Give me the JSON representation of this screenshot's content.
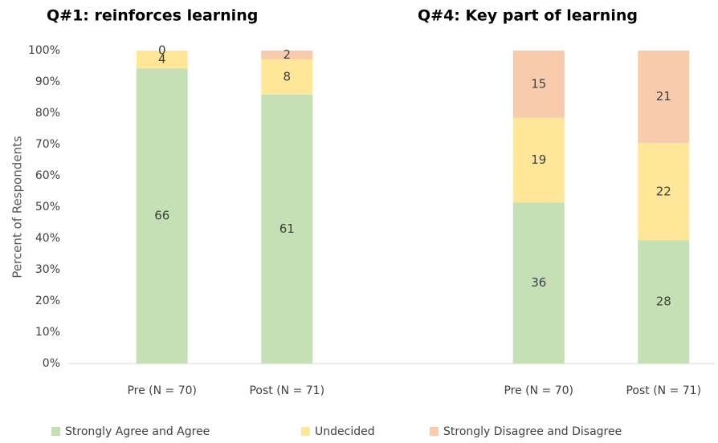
{
  "chart_data": {
    "type": "bar",
    "stacked": "percent",
    "grid": false,
    "ylabel": "Percent of Respondents",
    "ylim": [
      0,
      100
    ],
    "yticks": [
      {
        "value": 0,
        "label": "0%"
      },
      {
        "value": 10,
        "label": "10%"
      },
      {
        "value": 20,
        "label": "20%"
      },
      {
        "value": 30,
        "label": "30%"
      },
      {
        "value": 40,
        "label": "40%"
      },
      {
        "value": 50,
        "label": "50%"
      },
      {
        "value": 60,
        "label": "60%"
      },
      {
        "value": 70,
        "label": "70%"
      },
      {
        "value": 80,
        "label": "80%"
      },
      {
        "value": 90,
        "label": "90%"
      },
      {
        "value": 100,
        "label": "100%"
      }
    ],
    "series": [
      {
        "name": "Strongly Agree and Agree",
        "color": "#c5e0b4"
      },
      {
        "name": "Undecided",
        "color": "#ffe699"
      },
      {
        "name": "Strongly Disagree and Disagree",
        "color": "#f8cbad"
      }
    ],
    "panels": [
      {
        "title": "Q#1:  reinforces learning",
        "categories": [
          "Pre (N = 70)",
          "Post (N = 71)"
        ],
        "series": [
          {
            "values": [
              66,
              61
            ]
          },
          {
            "values": [
              4,
              8
            ]
          },
          {
            "values": [
              0,
              2
            ]
          }
        ]
      },
      {
        "title": "Q#4:  Key part of learning",
        "categories": [
          "Pre (N = 70)",
          "Post (N = 71)"
        ],
        "series": [
          {
            "values": [
              36,
              28
            ]
          },
          {
            "values": [
              19,
              22
            ]
          },
          {
            "values": [
              15,
              21
            ]
          }
        ]
      }
    ]
  }
}
